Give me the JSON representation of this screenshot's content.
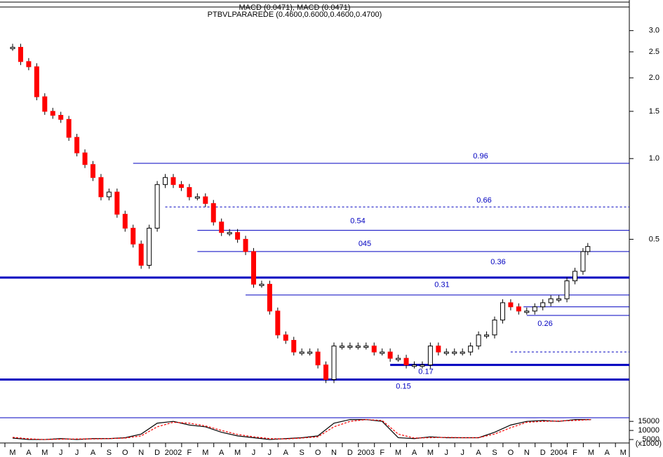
{
  "header": {
    "line1": "MACD (0.0471), MACD (0.0471)",
    "line2": "PTBVLPARAREDE (0.4600,0.6000,0.4600,0.4700)"
  },
  "chart_data": [
    {
      "type": "candlestick",
      "log": true,
      "x": [
        0,
        0.5,
        1,
        1.5,
        2,
        2.5,
        3,
        3.5,
        4,
        4.5,
        5,
        5.5,
        6,
        6.5,
        7,
        7.5,
        8,
        8.5,
        9,
        9.5,
        10,
        10.5,
        11,
        11.5,
        12,
        12.5,
        13,
        13.5,
        14,
        14.5,
        15,
        15.5,
        16,
        16.5,
        17,
        17.5,
        18,
        18.5,
        19,
        19.5,
        20,
        20.5,
        21,
        21.5,
        22,
        22.5,
        23,
        23.5,
        24,
        24.5,
        25,
        25.5,
        26,
        26.5,
        27,
        27.5,
        28,
        28.5,
        29,
        29.5,
        30,
        30.5,
        31,
        31.5,
        32,
        32.5,
        33,
        33.5,
        34,
        34.5,
        35,
        35.5,
        35.8
      ],
      "values": [
        2.6,
        2.3,
        2.2,
        1.7,
        1.5,
        1.45,
        1.4,
        1.2,
        1.05,
        0.95,
        0.85,
        0.72,
        0.75,
        0.62,
        0.55,
        0.48,
        0.4,
        0.55,
        0.8,
        0.85,
        0.8,
        0.78,
        0.72,
        0.72,
        0.68,
        0.58,
        0.53,
        0.53,
        0.5,
        0.45,
        0.34,
        0.34,
        0.27,
        0.22,
        0.21,
        0.19,
        0.19,
        0.19,
        0.17,
        0.15,
        0.2,
        0.2,
        0.2,
        0.2,
        0.2,
        0.19,
        0.19,
        0.18,
        0.18,
        0.17,
        0.17,
        0.17,
        0.2,
        0.19,
        0.19,
        0.19,
        0.19,
        0.2,
        0.22,
        0.22,
        0.25,
        0.29,
        0.28,
        0.27,
        0.27,
        0.28,
        0.29,
        0.3,
        0.3,
        0.35,
        0.38,
        0.45,
        0.47
      ],
      "ylim": [
        0.112,
        3.63
      ],
      "yticks": [
        {
          "value": 3,
          "label": "3.0"
        },
        2.5,
        {
          "value": 2,
          "label": "2.0"
        },
        1.5,
        {
          "value": 1,
          "label": "1.0"
        },
        0.5
      ],
      "xticks": [
        {
          "value": 0,
          "label": "M"
        },
        {
          "value": 1,
          "label": "A"
        },
        {
          "value": 2,
          "label": "M"
        },
        {
          "value": 3,
          "label": "J"
        },
        {
          "value": 4,
          "label": "J"
        },
        {
          "value": 5,
          "label": "A"
        },
        {
          "value": 6,
          "label": "S"
        },
        {
          "value": 7,
          "label": "O"
        },
        {
          "value": 8,
          "label": "N"
        },
        {
          "value": 9,
          "label": "D"
        },
        {
          "value": 10,
          "label": "2002"
        },
        {
          "value": 11,
          "label": "F"
        },
        {
          "value": 12,
          "label": "M"
        },
        {
          "value": 13,
          "label": "A"
        },
        {
          "value": 14,
          "label": "M"
        },
        {
          "value": 15,
          "label": "J"
        },
        {
          "value": 16,
          "label": "J"
        },
        {
          "value": 17,
          "label": "A"
        },
        {
          "value": 18,
          "label": "S"
        },
        {
          "value": 19,
          "label": "O"
        },
        {
          "value": 20,
          "label": "N"
        },
        {
          "value": 21,
          "label": "D"
        },
        {
          "value": 22,
          "label": "2003"
        },
        {
          "value": 23,
          "label": "F"
        },
        {
          "value": 24,
          "label": "M"
        },
        {
          "value": 25,
          "label": "A"
        },
        {
          "value": 26,
          "label": "M"
        },
        {
          "value": 27,
          "label": "J"
        },
        {
          "value": 28,
          "label": "J"
        },
        {
          "value": 29,
          "label": "A"
        },
        {
          "value": 30,
          "label": "S"
        },
        {
          "value": 31,
          "label": "O"
        },
        {
          "value": 32,
          "label": "N"
        },
        {
          "value": 33,
          "label": "D"
        },
        {
          "value": 34,
          "label": "2004"
        },
        {
          "value": 35,
          "label": "F"
        },
        {
          "value": 36,
          "label": "M"
        },
        {
          "value": 37,
          "label": "A"
        },
        {
          "value": 38,
          "label": "M"
        }
      ],
      "levels": [
        {
          "value": 0.96,
          "label": "0.96",
          "start": 7.5
        },
        {
          "value": 0.66,
          "label": "0.66",
          "start": 9.5,
          "style": "dashed"
        },
        {
          "value": 0.54,
          "label": "0.54",
          "start": 11.5
        },
        {
          "value": 0.45,
          "label": "045",
          "start": 11.5
        },
        {
          "value": 0.36,
          "label": "0.36",
          "start": -1,
          "style": "thick"
        },
        {
          "value": 0.31,
          "label": "0.31",
          "start": 14.5
        },
        {
          "value": 0.28,
          "start": 31.8
        },
        {
          "value": 0.26,
          "label": "0.26",
          "start": 32
        },
        {
          "value": 0.19,
          "start": 31,
          "style": "dashed"
        },
        {
          "value": 0.17,
          "label": "0.17",
          "start": 23.5,
          "style": "thick"
        },
        {
          "value": 0.15,
          "label": "0.15",
          "start": -1,
          "style": "thick"
        }
      ],
      "up_color": "#ffffff",
      "down_color": "#ff0000",
      "level_color": "#0000c0"
    },
    {
      "type": "line",
      "y_unit": "(x1000)",
      "x": [
        0,
        1,
        2,
        3,
        4,
        5,
        6,
        7,
        8,
        9,
        10,
        11,
        12,
        13,
        14,
        15,
        16,
        17,
        18,
        19,
        20,
        21,
        22,
        23,
        24,
        25,
        26,
        27,
        28,
        29,
        30,
        31,
        32,
        33,
        34,
        35,
        36
      ],
      "series": [
        {
          "color": "#000000",
          "values": [
            5800,
            5000,
            5000,
            5500,
            5000,
            5500,
            5500,
            6000,
            8000,
            14000,
            15000,
            13000,
            12000,
            9000,
            7000,
            6000,
            5000,
            5500,
            6000,
            7000,
            14000,
            16000,
            16000,
            15000,
            6000,
            5500,
            6500,
            6000,
            6000,
            6000,
            9000,
            13000,
            15000,
            15500,
            15000,
            16000,
            16000
          ]
        },
        {
          "color": "#ff0000",
          "values": [
            6200,
            5400,
            5000,
            5200,
            5300,
            5300,
            5500,
            5800,
            7000,
            12000,
            14500,
            14000,
            12500,
            10000,
            7800,
            6500,
            5500,
            5300,
            5800,
            6500,
            12000,
            15000,
            16000,
            15500,
            8000,
            5800,
            6000,
            6200,
            6000,
            6000,
            8000,
            11500,
            14500,
            15000,
            15200,
            15500,
            16000
          ]
        }
      ],
      "ylim": [
        0,
        17000
      ],
      "yticks": [
        15000,
        10000,
        5000
      ]
    }
  ]
}
